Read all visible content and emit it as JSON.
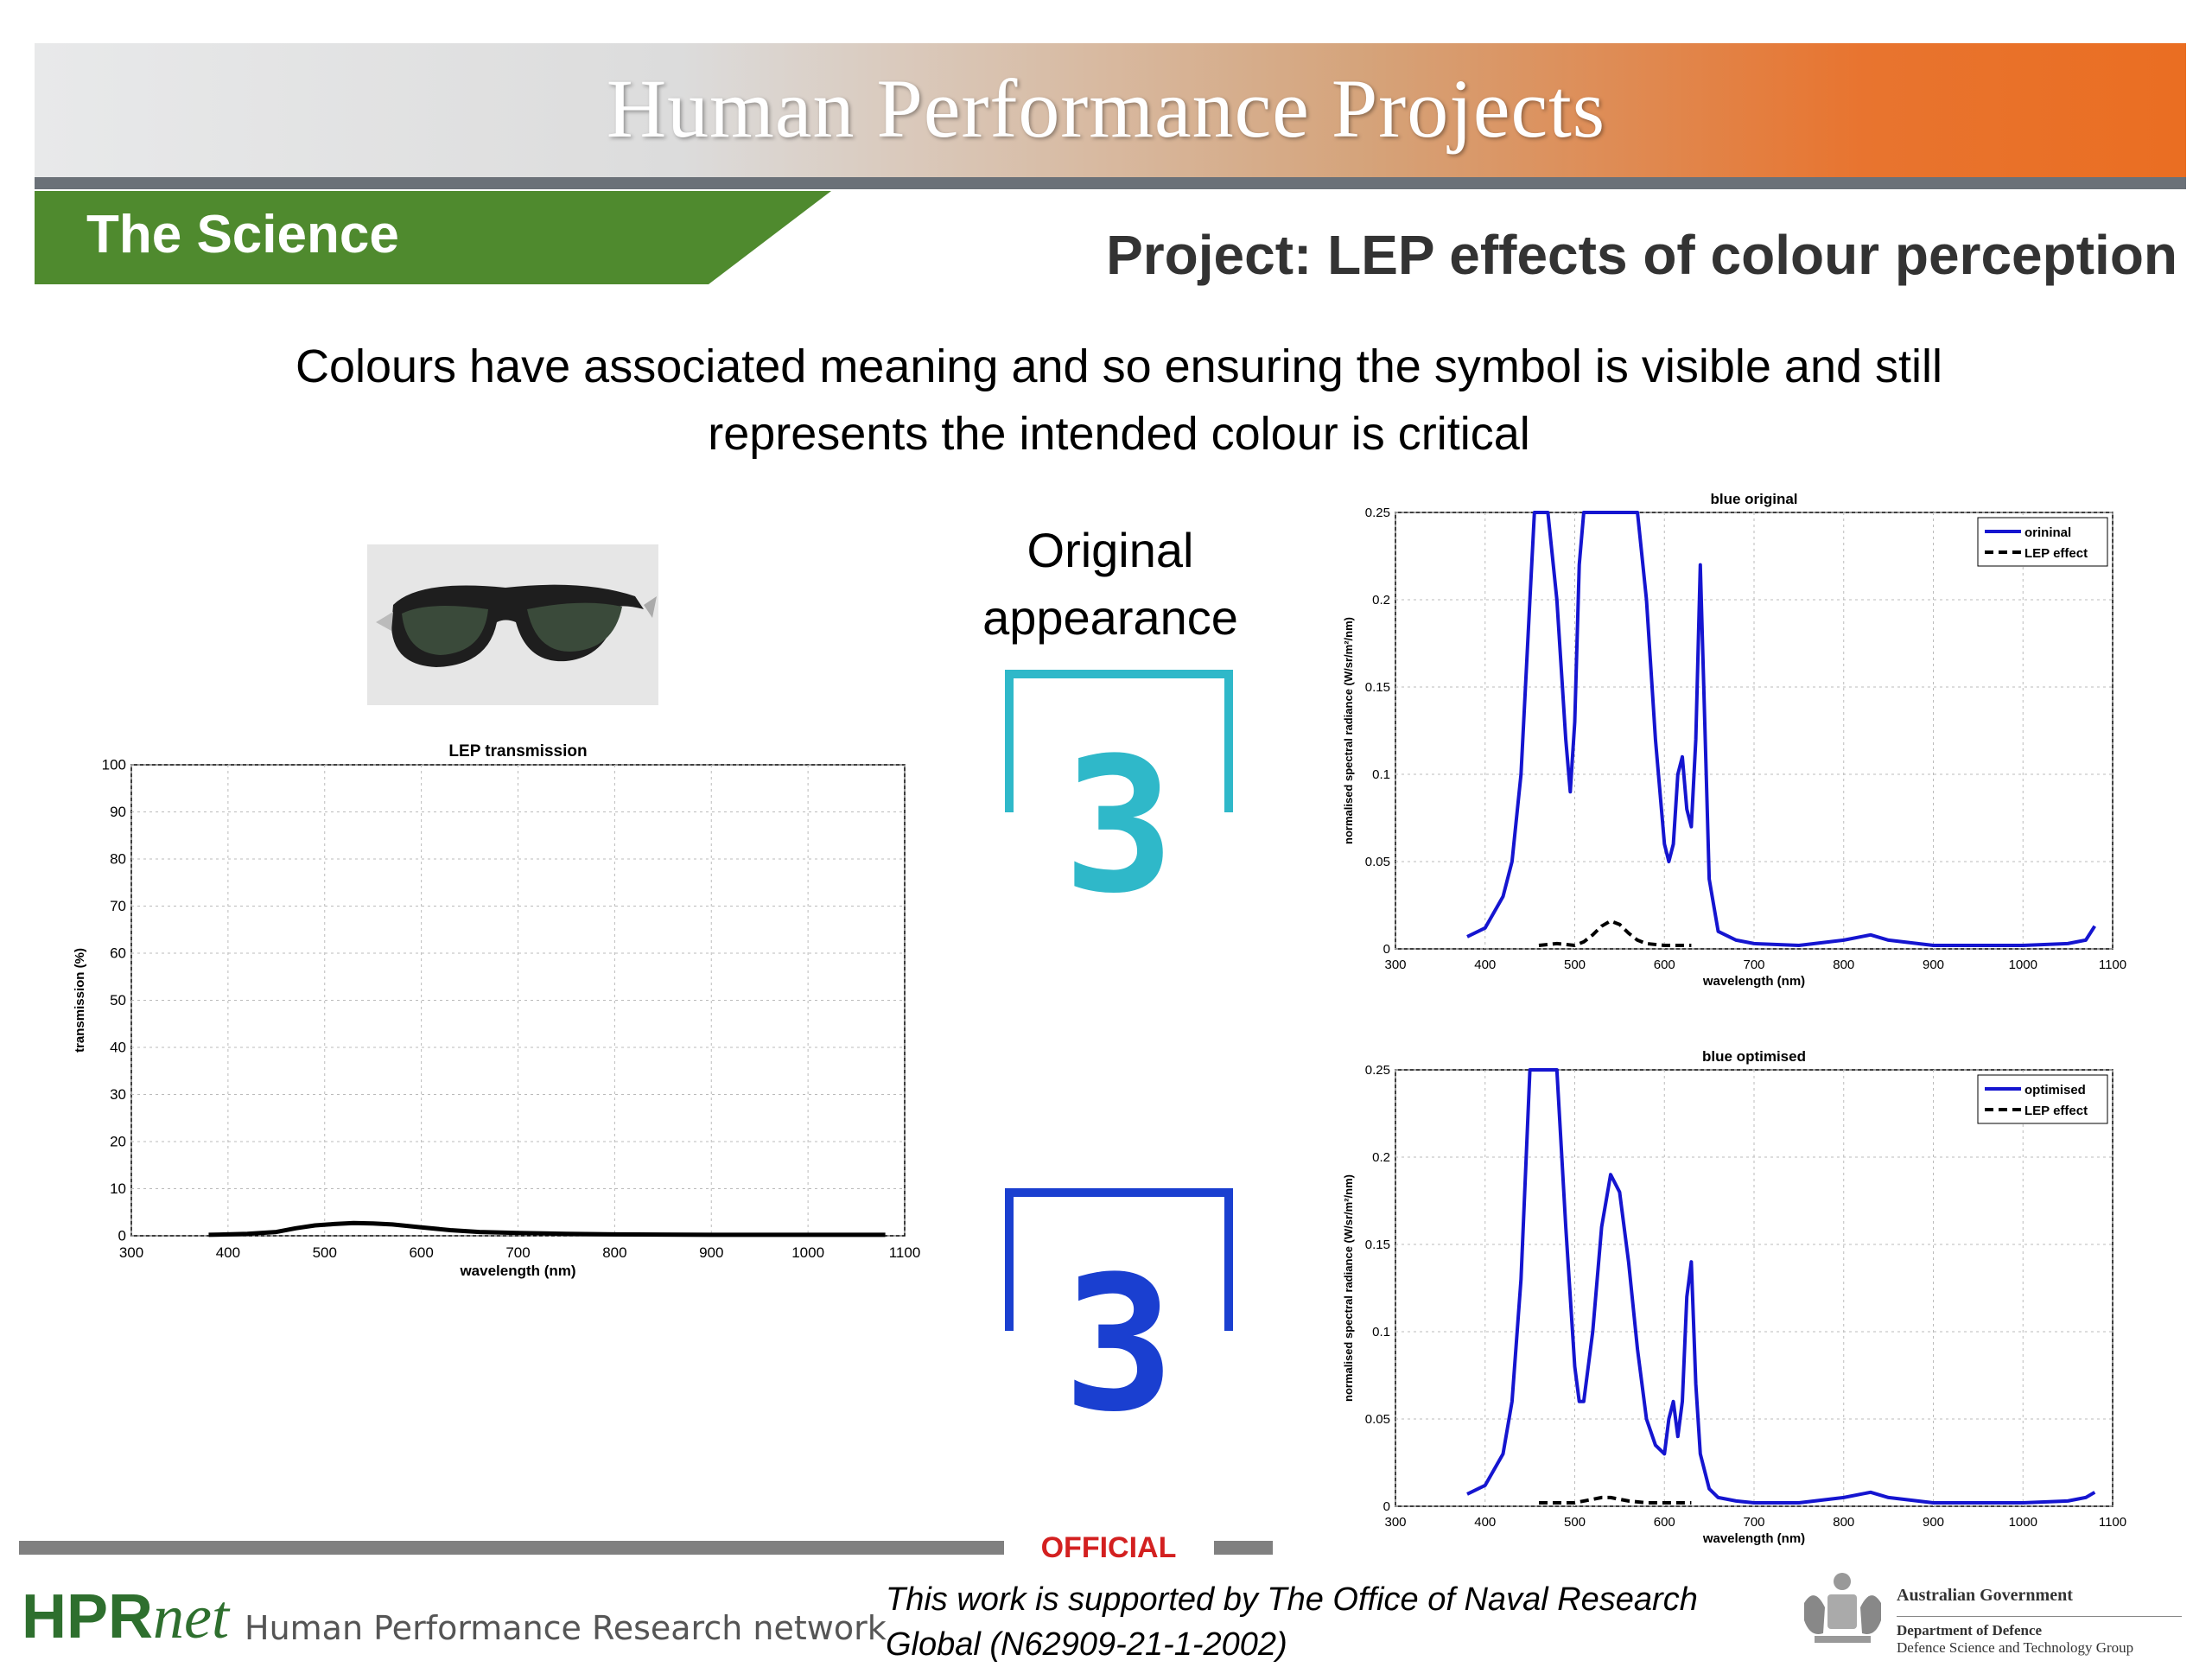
{
  "header": {
    "title": "Human Performance Projects",
    "section_tab": "The Science",
    "project_title": "Project: LEP effects of colour perception"
  },
  "intro": {
    "line1": "Colours have associated meaning and so ensuring the symbol is visible and still",
    "line2": "represents the intended colour is critical"
  },
  "original_label": {
    "line1": "Original",
    "line2": "appearance"
  },
  "symbol_digit": "3",
  "colors": {
    "tab_green": "#4f8a2e",
    "symbol_original": "#2fb8c9",
    "symbol_optimised": "#1a3fd0",
    "series_blue": "#1515d0",
    "official_red": "#d32020"
  },
  "chart_data": [
    {
      "type": "line",
      "title": "LEP transmission",
      "xlabel": "wavelength (nm)",
      "ylabel": "transmission (%)",
      "xlim": [
        300,
        1100
      ],
      "ylim": [
        0,
        100
      ],
      "xticks": [
        "300",
        "400",
        "500",
        "600",
        "700",
        "800",
        "900",
        "1000",
        "1100"
      ],
      "yticks": [
        "0",
        "10",
        "20",
        "30",
        "40",
        "50",
        "60",
        "70",
        "80",
        "90",
        "100"
      ],
      "grid": true,
      "series": [
        {
          "x": [
            380,
            420,
            450,
            470,
            490,
            510,
            530,
            550,
            570,
            600,
            630,
            660,
            700,
            750,
            800,
            900,
            1000,
            1080
          ],
          "y": [
            0.2,
            0.4,
            0.8,
            1.6,
            2.2,
            2.5,
            2.7,
            2.6,
            2.4,
            1.8,
            1.2,
            0.8,
            0.6,
            0.4,
            0.3,
            0.2,
            0.2,
            0.2
          ]
        }
      ]
    },
    {
      "type": "line",
      "title": "blue original",
      "xlabel": "wavelength (nm)",
      "ylabel": "normalised spectral radiance (W/sr/m²/nm)",
      "xlim": [
        300,
        1100
      ],
      "ylim": [
        0,
        0.25
      ],
      "xticks": [
        "300",
        "400",
        "500",
        "600",
        "700",
        "800",
        "900",
        "1000",
        "1100"
      ],
      "yticks": [
        "0",
        "0.05",
        "0.1",
        "0.15",
        "0.2",
        "0.25"
      ],
      "grid": true,
      "legend_position": "top-right",
      "series": [
        {
          "name": "orininal",
          "x": [
            380,
            400,
            420,
            430,
            440,
            450,
            455,
            460,
            470,
            480,
            490,
            495,
            500,
            505,
            510,
            520,
            530,
            540,
            550,
            560,
            570,
            580,
            590,
            600,
            605,
            610,
            615,
            620,
            625,
            630,
            635,
            640,
            650,
            660,
            680,
            700,
            750,
            800,
            830,
            850,
            900,
            950,
            1000,
            1050,
            1070,
            1080
          ],
          "y": [
            0.007,
            0.012,
            0.03,
            0.05,
            0.1,
            0.2,
            0.25,
            0.25,
            0.25,
            0.2,
            0.12,
            0.09,
            0.13,
            0.22,
            0.25,
            0.25,
            0.25,
            0.25,
            0.25,
            0.25,
            0.25,
            0.2,
            0.12,
            0.06,
            0.05,
            0.06,
            0.1,
            0.11,
            0.08,
            0.07,
            0.12,
            0.22,
            0.04,
            0.01,
            0.005,
            0.003,
            0.002,
            0.005,
            0.008,
            0.005,
            0.002,
            0.002,
            0.002,
            0.003,
            0.005,
            0.013
          ]
        },
        {
          "name": "LEP effect",
          "x": [
            460,
            480,
            500,
            510,
            520,
            530,
            540,
            550,
            560,
            570,
            580,
            600,
            630
          ],
          "y": [
            0.002,
            0.003,
            0.002,
            0.004,
            0.008,
            0.013,
            0.016,
            0.014,
            0.009,
            0.005,
            0.003,
            0.002,
            0.002
          ]
        }
      ]
    },
    {
      "type": "line",
      "title": "blue optimised",
      "xlabel": "wavelength (nm)",
      "ylabel": "normalised spectral radiance (W/sr/m²/nm)",
      "xlim": [
        300,
        1100
      ],
      "ylim": [
        0,
        0.25
      ],
      "xticks": [
        "300",
        "400",
        "500",
        "600",
        "700",
        "800",
        "900",
        "1000",
        "1100"
      ],
      "yticks": [
        "0",
        "0.05",
        "0.1",
        "0.15",
        "0.2",
        "0.25"
      ],
      "grid": true,
      "legend_position": "top-right",
      "series": [
        {
          "name": "optimised",
          "x": [
            380,
            400,
            420,
            430,
            440,
            450,
            460,
            470,
            480,
            490,
            500,
            505,
            510,
            520,
            530,
            540,
            550,
            560,
            570,
            580,
            590,
            600,
            605,
            610,
            615,
            620,
            625,
            630,
            635,
            640,
            650,
            660,
            680,
            700,
            750,
            800,
            830,
            850,
            900,
            950,
            1000,
            1050,
            1070,
            1080
          ],
          "y": [
            0.007,
            0.012,
            0.03,
            0.06,
            0.13,
            0.25,
            0.25,
            0.25,
            0.25,
            0.16,
            0.08,
            0.06,
            0.06,
            0.1,
            0.16,
            0.19,
            0.18,
            0.14,
            0.09,
            0.05,
            0.035,
            0.03,
            0.05,
            0.06,
            0.04,
            0.06,
            0.12,
            0.14,
            0.07,
            0.03,
            0.01,
            0.005,
            0.003,
            0.002,
            0.002,
            0.005,
            0.008,
            0.005,
            0.002,
            0.002,
            0.002,
            0.003,
            0.005,
            0.008
          ]
        },
        {
          "name": "LEP effect",
          "x": [
            460,
            480,
            500,
            510,
            520,
            530,
            540,
            550,
            560,
            580,
            600,
            630
          ],
          "y": [
            0.002,
            0.002,
            0.002,
            0.003,
            0.004,
            0.005,
            0.005,
            0.004,
            0.003,
            0.002,
            0.002,
            0.002
          ]
        }
      ]
    }
  ],
  "footer": {
    "official": "OFFICIAL",
    "logo_main": "HPR",
    "logo_net": "net",
    "logo_sub": "Human Performance Research network",
    "support_line1": "This work is supported by The Office of Naval Research",
    "support_line2": "Global (N62909-21-1-2002)",
    "gov_line1": "Australian Government",
    "gov_line2": "Department of Defence",
    "gov_line3": "Defence Science and Technology Group"
  }
}
